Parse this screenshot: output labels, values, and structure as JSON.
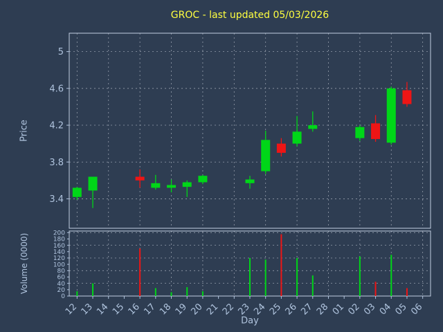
{
  "title": "GROC - last updated 05/03/2026",
  "colors": {
    "background": "#2e3d52",
    "title": "#ffff40",
    "axis_text": "#b0c4de",
    "grid": "#e8edf5",
    "border": "#c3cfe3",
    "up": "#00d618",
    "down": "#ee1515"
  },
  "axes": {
    "price_label": "Price",
    "volume_label": "Volume (0000)",
    "x_label": "Day"
  },
  "chart_data": {
    "type": "candlestick",
    "title": "GROC - last updated 05/03/2026",
    "xlabel": "Day",
    "ylabel": "Price",
    "ylabel2": "Volume (0000)",
    "legend": "none",
    "grid": "dashed",
    "x_categories": [
      "12",
      "13",
      "14",
      "15",
      "16",
      "17",
      "18",
      "19",
      "20",
      "21",
      "22",
      "23",
      "24",
      "25",
      "26",
      "27",
      "28",
      "01",
      "02",
      "03",
      "04",
      "05",
      "06"
    ],
    "price_range": [
      3.08,
      5.2
    ],
    "price_ticks": [
      {
        "value": 3.4,
        "label": "3.4"
      },
      {
        "value": 3.8,
        "label": "3.8"
      },
      {
        "value": 4.2,
        "label": "4.2"
      },
      {
        "value": 4.6,
        "label": "4.6"
      },
      {
        "value": 5.0,
        "label": "5"
      }
    ],
    "volume_range": [
      0,
      205
    ],
    "volume_ticks": [
      0,
      20,
      40,
      60,
      80,
      100,
      120,
      140,
      160,
      180,
      200
    ],
    "candles": [
      {
        "day": "12",
        "open": 3.42,
        "high": 3.53,
        "low": 3.39,
        "close": 3.52,
        "volume": 15
      },
      {
        "day": "13",
        "open": 3.49,
        "high": 3.64,
        "low": 3.3,
        "close": 3.64,
        "volume": 40
      },
      {
        "day": "16",
        "open": 3.64,
        "high": 3.72,
        "low": 3.52,
        "close": 3.6,
        "volume": 150
      },
      {
        "day": "17",
        "open": 3.52,
        "high": 3.66,
        "low": 3.5,
        "close": 3.57,
        "volume": 25
      },
      {
        "day": "18",
        "open": 3.52,
        "high": 3.61,
        "low": 3.47,
        "close": 3.55,
        "volume": 12
      },
      {
        "day": "19",
        "open": 3.53,
        "high": 3.6,
        "low": 3.42,
        "close": 3.58,
        "volume": 28
      },
      {
        "day": "20",
        "open": 3.58,
        "high": 3.66,
        "low": 3.56,
        "close": 3.65,
        "volume": 15
      },
      {
        "day": "23",
        "open": 3.57,
        "high": 3.65,
        "low": 3.51,
        "close": 3.61,
        "volume": 120
      },
      {
        "day": "24",
        "open": 3.7,
        "high": 4.14,
        "low": 3.67,
        "close": 4.04,
        "volume": 115
      },
      {
        "day": "25",
        "open": 4.0,
        "high": 4.06,
        "low": 3.86,
        "close": 3.9,
        "volume": 195
      },
      {
        "day": "26",
        "open": 4.0,
        "high": 4.3,
        "low": 3.97,
        "close": 4.13,
        "volume": 120
      },
      {
        "day": "27",
        "open": 4.16,
        "high": 4.35,
        "low": 4.13,
        "close": 4.2,
        "volume": 65
      },
      {
        "day": "02",
        "open": 4.06,
        "high": 4.2,
        "low": 4.03,
        "close": 4.18,
        "volume": 125
      },
      {
        "day": "03",
        "open": 4.22,
        "high": 4.31,
        "low": 4.02,
        "close": 4.05,
        "volume": 45
      },
      {
        "day": "04",
        "open": 4.01,
        "high": 4.62,
        "low": 3.99,
        "close": 4.6,
        "volume": 130
      },
      {
        "day": "05",
        "open": 4.58,
        "high": 4.67,
        "low": 4.4,
        "close": 4.43,
        "volume": 25
      }
    ]
  }
}
